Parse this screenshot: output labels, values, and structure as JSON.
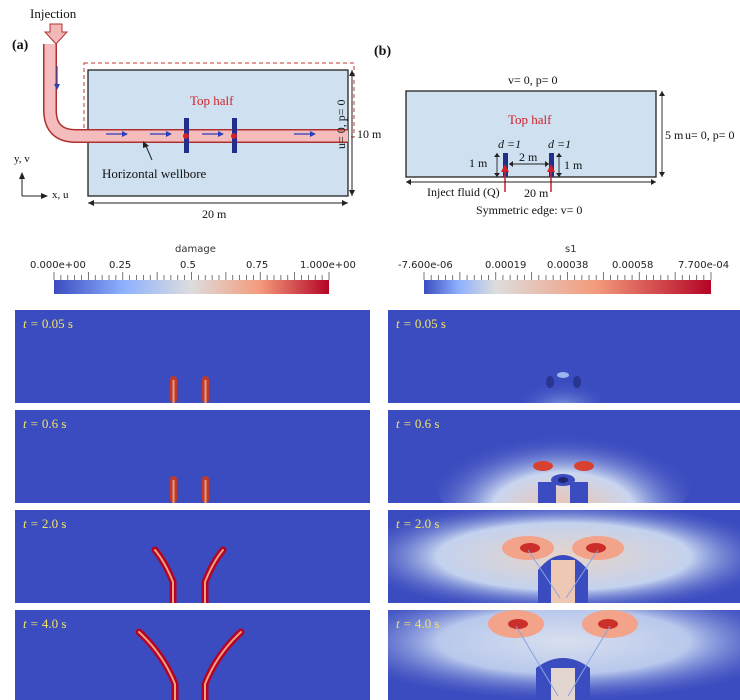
{
  "panel_a": {
    "label": "(a)",
    "injection": "Injection",
    "top_half": "Top half",
    "wellbore": "Horizontal wellbore",
    "height": "10 m",
    "width": "20 m",
    "axis_y": "y, v",
    "axis_x": "x, u"
  },
  "panel_b": {
    "label": "(b)",
    "top_bc": "v= 0, p= 0",
    "left_bc": "u= 0, p= 0",
    "right_bc": "u= 0, p= 0",
    "top_half": "Top half",
    "height": "5 m",
    "d1": "d =1",
    "d2": "d =1",
    "spacing": "2 m",
    "crack_left": "1 m",
    "crack_right": "1 m",
    "inject": "Inject fluid (Q)",
    "width": "20 m",
    "bottom_bc": "Symmetric edge:  v= 0"
  },
  "colorbars": {
    "damage": {
      "title": "damage",
      "ticks": [
        "0.000e+00",
        "0.25",
        "0.5",
        "0.75",
        "1.000e+00"
      ]
    },
    "s1": {
      "title": "s1",
      "ticks": [
        "-7.600e-06",
        "0.00019",
        "0.00038",
        "0.00058",
        "7.700e-04"
      ]
    }
  },
  "snapshots": {
    "times": [
      "0.05 s",
      "0.6 s",
      "2.0 s",
      "4.0 s"
    ],
    "t_symbol": "t =",
    "colors": {
      "background": "#3b4cc0",
      "crack": "#b40426",
      "stress_low": "#dfe6f2",
      "stress_high": "#e0453a"
    }
  }
}
